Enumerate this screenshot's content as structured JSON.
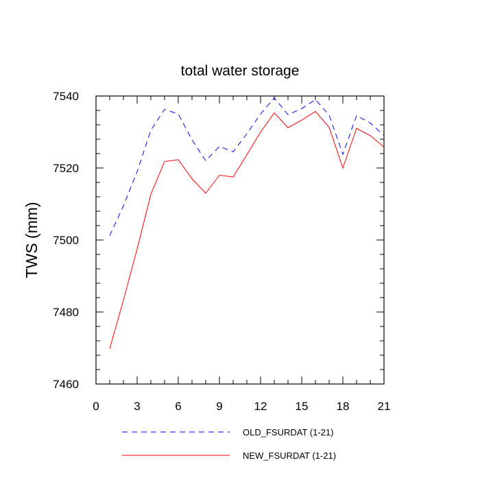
{
  "chart_data": {
    "type": "line",
    "title": "total water storage",
    "xlabel": "",
    "ylabel": "TWS  (mm)",
    "xlim": [
      0,
      21
    ],
    "ylim": [
      7460,
      7540
    ],
    "xticks": [
      0,
      3,
      6,
      9,
      12,
      15,
      18,
      21
    ],
    "xtick_labels": [
      "0",
      "3",
      "6",
      "9",
      "12",
      "15",
      "18",
      "21"
    ],
    "yticks": [
      7460,
      7480,
      7500,
      7520,
      7540
    ],
    "ytick_labels": [
      "7460",
      "7480",
      "7500",
      "7520",
      "7540"
    ],
    "grid": false,
    "legend_position": "bottom",
    "x": [
      1,
      2,
      3,
      4,
      5,
      6,
      7,
      8,
      9,
      10,
      11,
      12,
      13,
      14,
      15,
      16,
      17,
      18,
      19,
      20,
      21
    ],
    "series": [
      {
        "name": "OLD_FSURDAT (1-21)",
        "color": "#0000ff",
        "dash": "dashed",
        "values": [
          7501.2,
          7509.5,
          7519,
          7530.5,
          7536.3,
          7535,
          7527.8,
          7522,
          7526,
          7524.5,
          7529.5,
          7535,
          7539.5,
          7534.8,
          7536.5,
          7539,
          7534.7,
          7523.8,
          7534.6,
          7532.5,
          7529
        ]
      },
      {
        "name": "NEW_FSURDAT (1-21)",
        "color": "#ff0000",
        "dash": "solid",
        "values": [
          7469.8,
          7483.3,
          7497.5,
          7512.7,
          7521.8,
          7522.3,
          7517,
          7513,
          7518,
          7517.5,
          7523.7,
          7530,
          7535.3,
          7531.2,
          7533.3,
          7535.7,
          7531.3,
          7520,
          7531,
          7529,
          7525.8
        ]
      }
    ]
  }
}
